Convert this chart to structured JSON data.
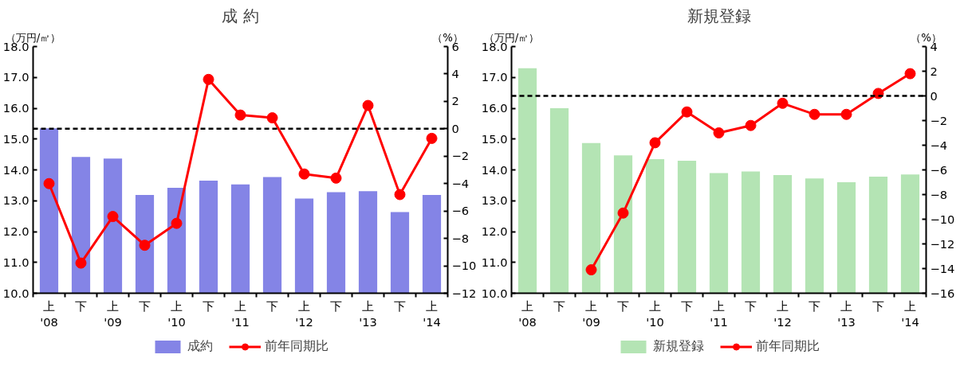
{
  "chart_data": [
    {
      "type": "bar",
      "title": "成 約",
      "ylabel": "（万円/㎡）",
      "y2label": "（%）",
      "categories": [
        "上\n'08",
        "下",
        "上\n'09",
        "下",
        "上\n'10",
        "下",
        "上\n'11",
        "下",
        "上\n'12",
        "下",
        "上\n'13",
        "下",
        "上\n'14"
      ],
      "ylim": [
        10,
        18
      ],
      "yticks": [
        {
          "value": 10,
          "label": "10.0"
        },
        {
          "value": 11,
          "label": "11.0"
        },
        {
          "value": 12,
          "label": "12.0"
        },
        {
          "value": 13,
          "label": "13.0"
        },
        {
          "value": 14,
          "label": "14.0"
        },
        {
          "value": 15,
          "label": "15.0"
        },
        {
          "value": 16,
          "label": "16.0"
        },
        {
          "value": 17,
          "label": "17.0"
        },
        {
          "value": 18,
          "label": "18.0"
        }
      ],
      "y2lim": [
        -12,
        6
      ],
      "y2ticks": [
        -12,
        -10,
        -8,
        -6,
        -4,
        -2,
        0,
        2,
        4,
        6
      ],
      "series": [
        {
          "name": "成約",
          "color": "#8484e6",
          "values": [
            15.35,
            14.42,
            14.37,
            13.19,
            13.42,
            13.65,
            13.53,
            13.77,
            13.07,
            13.28,
            13.31,
            12.63,
            13.19
          ]
        },
        {
          "type": "line",
          "axis": "y2",
          "name": "前年同期比",
          "color": "#ff0000",
          "marker": "circle",
          "values": [
            -4.0,
            -9.8,
            -6.4,
            -8.5,
            -6.9,
            3.6,
            1.0,
            0.8,
            -3.3,
            -3.6,
            1.7,
            -4.8,
            -0.7
          ]
        }
      ],
      "ref_lines": [
        {
          "axis": "y2",
          "value": 0,
          "color": "#000000",
          "line_style": "dashed"
        }
      ],
      "legend": "bottom",
      "grid": false
    },
    {
      "type": "bar",
      "title": "新規登録",
      "ylabel": "（万円/㎡）",
      "y2label": "（%）",
      "categories": [
        "上\n'08",
        "下",
        "上\n'09",
        "下",
        "上\n'10",
        "下",
        "上\n'11",
        "下",
        "上\n'12",
        "下",
        "上\n'13",
        "下",
        "上\n'14"
      ],
      "ylim": [
        10,
        18
      ],
      "yticks": [
        {
          "value": 10,
          "label": "10.0"
        },
        {
          "value": 11,
          "label": "11.0"
        },
        {
          "value": 12,
          "label": "12.0"
        },
        {
          "value": 13,
          "label": "13.0"
        },
        {
          "value": 14,
          "label": "14.0"
        },
        {
          "value": 15,
          "label": "15.0"
        },
        {
          "value": 16,
          "label": "16.0"
        },
        {
          "value": 17,
          "label": "17.0"
        },
        {
          "value": 18,
          "label": "18.0"
        }
      ],
      "y2lim": [
        -16,
        4
      ],
      "y2ticks": [
        -16,
        -14,
        -12,
        -10,
        -8,
        -6,
        -4,
        -2,
        0,
        2,
        4
      ],
      "series": [
        {
          "name": "新規登録",
          "color": "#b4e4b4",
          "values": [
            17.3,
            16.0,
            14.87,
            14.47,
            14.35,
            14.3,
            13.9,
            13.95,
            13.83,
            13.72,
            13.6,
            13.78,
            13.85
          ]
        },
        {
          "type": "line",
          "axis": "y2",
          "name": "前年同期比",
          "color": "#ff0000",
          "marker": "circle",
          "values": [
            null,
            null,
            -14.1,
            -9.5,
            -3.8,
            -1.3,
            -3.0,
            -2.4,
            -0.6,
            -1.5,
            -1.5,
            0.2,
            1.8
          ]
        }
      ],
      "ref_lines": [
        {
          "axis": "y2",
          "value": 0,
          "color": "#000000",
          "line_style": "dashed"
        }
      ],
      "legend": "bottom",
      "grid": false
    }
  ]
}
